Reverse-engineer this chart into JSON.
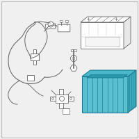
{
  "bg_color": "#f0f0f0",
  "border_color": "#bbbbbb",
  "tray_fill": "#5abfcf",
  "tray_stroke": "#1e7a96",
  "tray_inner": "#3aaabb",
  "tray_dark": "#2899aa",
  "battery_stroke": "#666666",
  "wire_stroke": "#666666",
  "bracket_stroke": "#666666",
  "line_width": 0.6,
  "tray_lw": 0.8,
  "wire_lw": 0.7
}
